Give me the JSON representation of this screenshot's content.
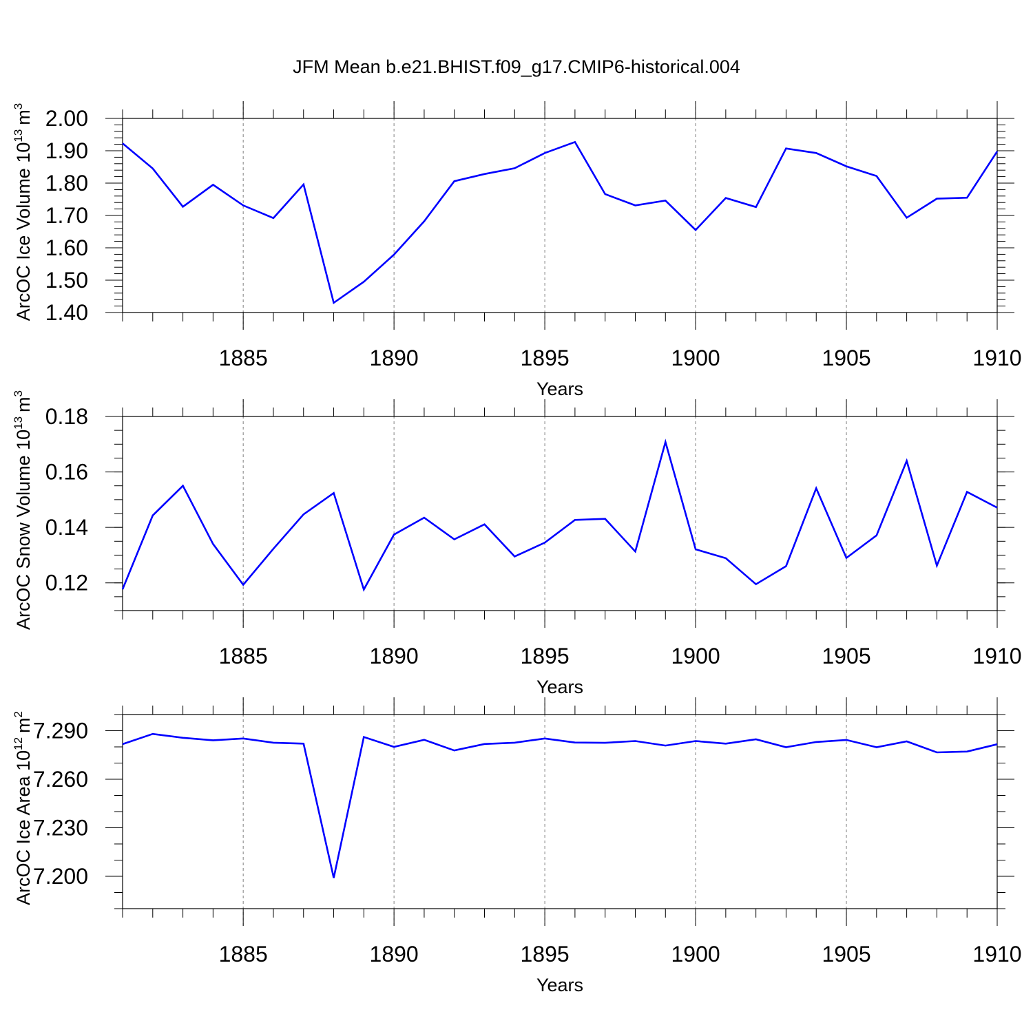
{
  "title": "JFM Mean b.e21.BHIST.f09_g17.CMIP6-historical.004",
  "colors": {
    "line": "#0000ff",
    "axis": "#000000",
    "grid": "#7f7f7f",
    "background": "#ffffff"
  },
  "chart_data": [
    {
      "type": "line",
      "ylabel_main": "ArcOC Ice Volume 10",
      "ylabel_exp": "13",
      "ylabel_unit": "m",
      "ylabel_unit_exp": "3",
      "xlabel": "Years",
      "xlim": [
        1881,
        1910
      ],
      "ylim": [
        1.4,
        2.0
      ],
      "yticks": [
        1.4,
        1.5,
        1.6,
        1.7,
        1.8,
        1.9,
        2.0
      ],
      "ytick_labels": [
        "1.40",
        "1.50",
        "1.60",
        "1.70",
        "1.80",
        "1.90",
        "2.00"
      ],
      "y_minor_step": 0.02,
      "xticks": [
        1885,
        1890,
        1895,
        1900,
        1905,
        1910
      ],
      "xtick_labels": [
        "1885",
        "1890",
        "1895",
        "1900",
        "1905",
        "1910"
      ],
      "x": [
        1881,
        1882,
        1883,
        1884,
        1885,
        1886,
        1887,
        1888,
        1889,
        1890,
        1891,
        1892,
        1893,
        1894,
        1895,
        1896,
        1897,
        1898,
        1899,
        1900,
        1901,
        1902,
        1903,
        1904,
        1905,
        1906,
        1907,
        1908,
        1909,
        1910
      ],
      "values": [
        1.923,
        1.845,
        1.727,
        1.795,
        1.731,
        1.692,
        1.796,
        1.43,
        1.495,
        1.579,
        1.682,
        1.806,
        1.828,
        1.846,
        1.893,
        1.927,
        1.766,
        1.731,
        1.746,
        1.655,
        1.754,
        1.726,
        1.907,
        1.893,
        1.852,
        1.822,
        1.693,
        1.752,
        1.755,
        1.898
      ]
    },
    {
      "type": "line",
      "ylabel_main": "ArcOC Snow Volume 10",
      "ylabel_exp": "13",
      "ylabel_unit": "m",
      "ylabel_unit_exp": "3",
      "xlabel": "Years",
      "xlim": [
        1881,
        1910
      ],
      "ylim": [
        0.11,
        0.18
      ],
      "yticks": [
        0.12,
        0.14,
        0.16,
        0.18
      ],
      "ytick_labels": [
        "0.12",
        "0.14",
        "0.16",
        "0.18"
      ],
      "y_minor_step": 0.005,
      "xticks": [
        1885,
        1890,
        1895,
        1900,
        1905,
        1910
      ],
      "xtick_labels": [
        "1885",
        "1890",
        "1895",
        "1900",
        "1905",
        "1910"
      ],
      "x": [
        1881,
        1882,
        1883,
        1884,
        1885,
        1886,
        1887,
        1888,
        1889,
        1890,
        1891,
        1892,
        1893,
        1894,
        1895,
        1896,
        1897,
        1898,
        1899,
        1900,
        1901,
        1902,
        1903,
        1904,
        1905,
        1906,
        1907,
        1908,
        1909,
        1910
      ],
      "values": [
        0.1177,
        0.1443,
        0.155,
        0.134,
        0.1193,
        0.1323,
        0.1447,
        0.1524,
        0.1176,
        0.1374,
        0.1435,
        0.1357,
        0.1411,
        0.1295,
        0.1345,
        0.1427,
        0.1431,
        0.1313,
        0.1708,
        0.1321,
        0.1289,
        0.1195,
        0.126,
        0.1541,
        0.129,
        0.1371,
        0.164,
        0.1262,
        0.1528,
        0.1471
      ]
    },
    {
      "type": "line",
      "ylabel_main": "ArcOC Ice Area 10",
      "ylabel_exp": "12",
      "ylabel_unit": "m",
      "ylabel_unit_exp": "2",
      "xlabel": "Years",
      "xlim": [
        1881,
        1910
      ],
      "ylim": [
        7.18,
        7.3
      ],
      "yticks": [
        7.2,
        7.23,
        7.26,
        7.29
      ],
      "ytick_labels": [
        "7.200",
        "7.230",
        "7.260",
        "7.290"
      ],
      "y_minor_step": 0.01,
      "xticks": [
        1885,
        1890,
        1895,
        1900,
        1905,
        1910
      ],
      "xtick_labels": [
        "1885",
        "1890",
        "1895",
        "1900",
        "1905",
        "1910"
      ],
      "x": [
        1881,
        1882,
        1883,
        1884,
        1885,
        1886,
        1887,
        1888,
        1889,
        1890,
        1891,
        1892,
        1893,
        1894,
        1895,
        1896,
        1897,
        1898,
        1899,
        1900,
        1901,
        1902,
        1903,
        1904,
        1905,
        1906,
        1907,
        1908,
        1909,
        1910
      ],
      "values": [
        7.2817,
        7.288,
        7.2856,
        7.2841,
        7.2852,
        7.2826,
        7.282,
        7.199,
        7.2861,
        7.28,
        7.2844,
        7.2778,
        7.2818,
        7.2826,
        7.2852,
        7.2827,
        7.2825,
        7.2836,
        7.2808,
        7.2836,
        7.282,
        7.2847,
        7.2798,
        7.283,
        7.2843,
        7.2798,
        7.2834,
        7.2766,
        7.2771,
        7.2816
      ]
    }
  ]
}
